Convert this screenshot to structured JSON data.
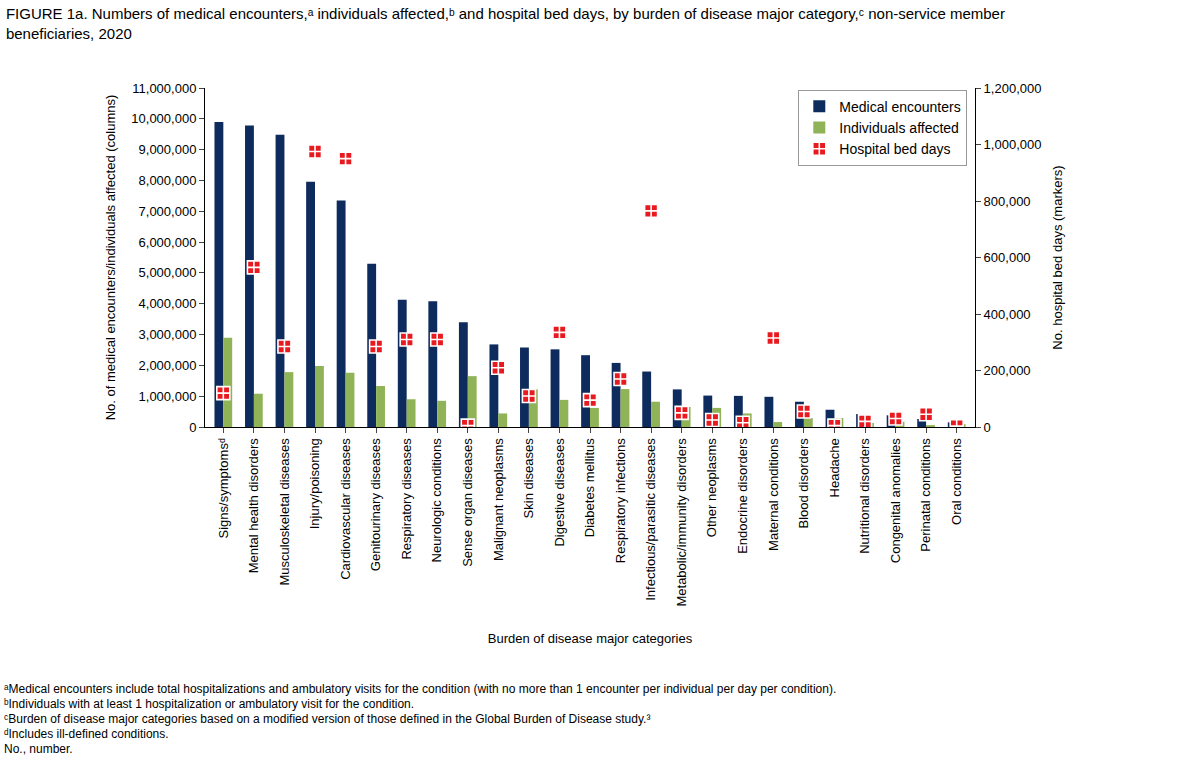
{
  "chart_data": {
    "type": "bar",
    "title": "FIGURE 1a. Numbers of medical encounters,ᵃ individuals affected,ᵇ and hospital bed days, by burden of disease major category,ᶜ non-service member beneficiaries, 2020",
    "x_label": "Burden of disease major categories",
    "y_label": "No. of medical encounters/individuals affected (columns)",
    "y2_label": "No. hospital bed days (markers)",
    "annotations": [
      "ᵃMedical encounters include total hospitalizations and ambulatory visits for the condition (with no more than 1 encounter per individual per day per condition).",
      "ᵇIndividuals with at least 1 hospitalization or ambulatory visit for the condition.",
      "ᶜBurden of disease major categories based on a modified version of those defined in the Global Burden of Disease study.³",
      "ᵈIncludes ill-defined conditions.",
      "No., number."
    ],
    "categories": [
      "Signs/symptomsᵈ",
      "Mental health disorders",
      "Musculoskeletal diseases",
      "Injury/poisoning",
      "Cardiovascular diseases",
      "Genitourinary diseases",
      "Respiratory diseases",
      "Neurologic conditions",
      "Sense organ diseases",
      "Malignant neoplasms",
      "Skin diseases",
      "Digestive diseases",
      "Diabetes mellitus",
      "Respiratory infections",
      "Infectious/parasitic diseases",
      "Metabolic/immunity disorders",
      "Other neoplasms",
      "Endocrine disorders",
      "Maternal conditions",
      "Blood disorders",
      "Headache",
      "Nutritional disorders",
      "Congenital anomalies",
      "Perinatal conditions",
      "Oral conditions"
    ],
    "series": [
      {
        "name": "Medical encounters",
        "type": "bar",
        "color": "#0d2b5c",
        "values": [
          9900000,
          9780000,
          9480000,
          7960000,
          7350000,
          5300000,
          4130000,
          4080000,
          3400000,
          2680000,
          2580000,
          2520000,
          2330000,
          2080000,
          1800000,
          1220000,
          1020000,
          1010000,
          980000,
          820000,
          560000,
          420000,
          380000,
          260000,
          150000
        ]
      },
      {
        "name": "Individuals affected",
        "type": "bar",
        "color": "#8fb356",
        "values": [
          2900000,
          1080000,
          1780000,
          1980000,
          1760000,
          1330000,
          900000,
          850000,
          1650000,
          440000,
          1220000,
          880000,
          620000,
          1230000,
          820000,
          650000,
          620000,
          440000,
          160000,
          290000,
          290000,
          130000,
          170000,
          60000,
          90000
        ]
      },
      {
        "name": "Hospital bed days",
        "type": "scatter",
        "axis": "y2",
        "color": "#e8191f",
        "marker": "square-cross",
        "values": [
          120000,
          565000,
          285000,
          975000,
          950000,
          285000,
          310000,
          310000,
          5000,
          210000,
          110000,
          335000,
          95000,
          170000,
          765000,
          50000,
          25000,
          15000,
          315000,
          55000,
          5000,
          20000,
          30000,
          45000,
          3000
        ]
      }
    ],
    "ylim": [
      0,
      11000000
    ],
    "yticks": [
      0,
      {
        "value": 1000000,
        "label": "1,000,000"
      },
      {
        "value": 2000000,
        "label": "2,000,000"
      },
      {
        "value": 3000000,
        "label": "3,000,000"
      },
      {
        "value": 4000000,
        "label": "4,000,000"
      },
      {
        "value": 5000000,
        "label": "5,000,000"
      },
      {
        "value": 6000000,
        "label": "6,000,000"
      },
      {
        "value": 7000000,
        "label": "7,000,000"
      },
      {
        "value": 8000000,
        "label": "8,000,000"
      },
      {
        "value": 9000000,
        "label": "9,000,000"
      },
      {
        "value": 10000000,
        "label": "10,000,000"
      },
      {
        "value": 11000000,
        "label": "11,000,000"
      }
    ],
    "y2lim": [
      0,
      1200000
    ],
    "y2ticks": [
      0,
      {
        "value": 200000,
        "label": "200,000"
      },
      {
        "value": 400000,
        "label": "400,000"
      },
      {
        "value": 600000,
        "label": "600,000"
      },
      {
        "value": 800000,
        "label": "800,000"
      },
      {
        "value": 1000000,
        "label": "1,000,000"
      },
      {
        "value": 1200000,
        "label": "1,200,000"
      }
    ],
    "grid": false,
    "legend": "upper right"
  }
}
